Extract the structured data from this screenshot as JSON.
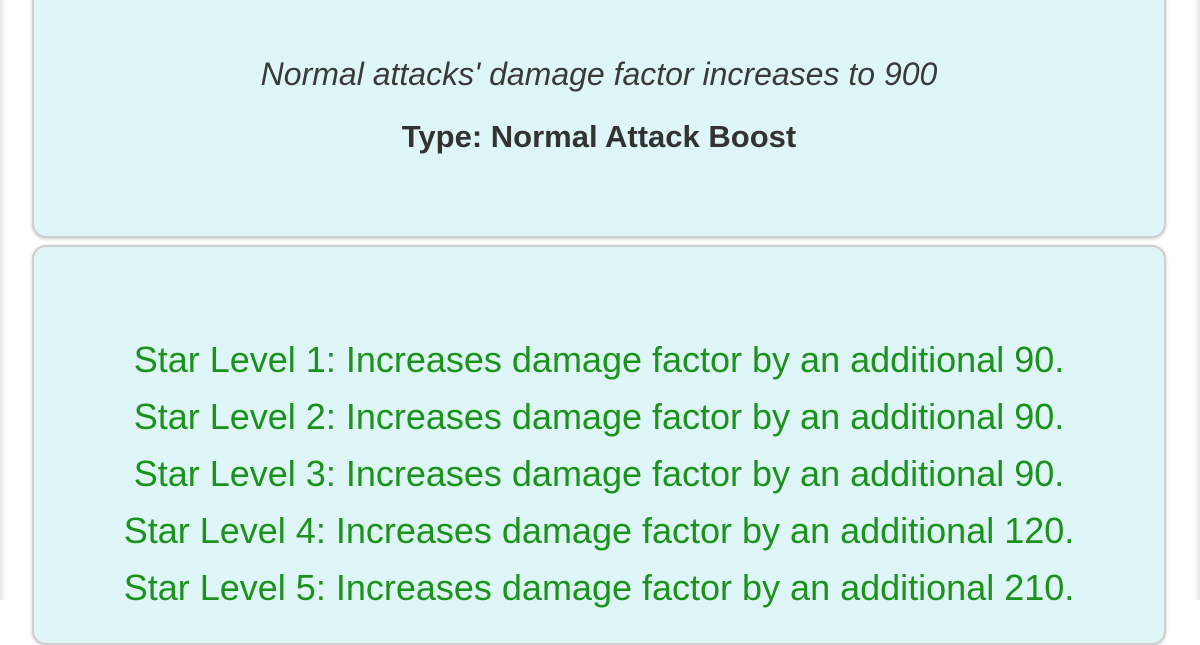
{
  "skill": {
    "description": "Normal attacks' damage factor increases to 900",
    "type_line": "Type: Normal Attack Boost"
  },
  "star_levels": [
    "Star Level 1: Increases damage factor by an additional 90.",
    "Star Level 2: Increases damage factor by an additional 90.",
    "Star Level 3: Increases damage factor by an additional 90.",
    "Star Level 4: Increases damage factor by an additional 120.",
    "Star Level 5: Increases damage factor by an additional 210."
  ],
  "colors": {
    "card_bg": "#dff6f9",
    "star_text": "#1b921b"
  }
}
